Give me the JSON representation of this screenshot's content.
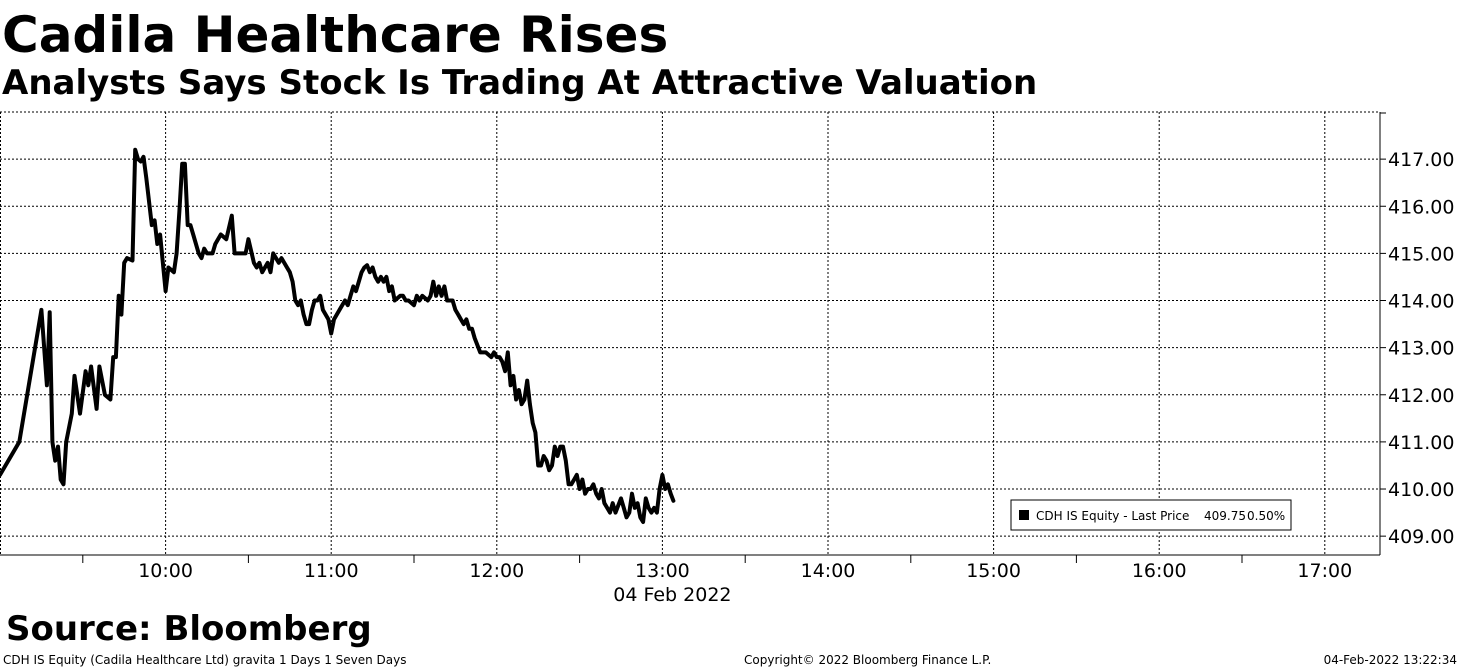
{
  "header": {
    "title": "Cadila Healthcare Rises",
    "subtitle": "Analysts Says Stock Is Trading At Attractive Valuation"
  },
  "source": "Source: Bloomberg",
  "footer": {
    "left": "CDH IS Equity (Cadila Healthcare Ltd) gravita 1 Days 1 Seven Days",
    "center": "Copyright© 2022 Bloomberg Finance L.P.",
    "right": "04-Feb-2022 13:22:34"
  },
  "chart_data": {
    "type": "line",
    "title": "Cadila Healthcare Rises",
    "subtitle": "Analysts Says Stock Is Trading At Attractive Valuation",
    "xlabel": "04 Feb 2022",
    "ylabel": "",
    "x_ticks": [
      "10:00",
      "11:00",
      "12:00",
      "13:00",
      "14:00",
      "15:00",
      "16:00",
      "17:00"
    ],
    "xlim": [
      "09:00",
      "17:20"
    ],
    "y_ticks": [
      "409.00",
      "410.00",
      "411.00",
      "412.00",
      "413.00",
      "414.00",
      "415.00",
      "416.00",
      "417.00"
    ],
    "ylim": [
      408.6,
      418.0
    ],
    "grid": true,
    "legend_position": "bottom-right",
    "legend": {
      "label": "CDH IS Equity - Last Price",
      "last_value": "409.75",
      "change": "0.50%"
    },
    "series": [
      {
        "name": "CDH IS Equity - Last Price",
        "color": "#000000",
        "points": [
          [
            "09:00",
            410.3
          ],
          [
            "09:07",
            411.0
          ],
          [
            "09:15",
            413.8
          ],
          [
            "09:17",
            412.2
          ],
          [
            "09:18",
            413.75
          ],
          [
            "09:19",
            411.0
          ],
          [
            "09:20",
            410.6
          ],
          [
            "09:21",
            410.9
          ],
          [
            "09:22",
            410.2
          ],
          [
            "09:23",
            410.1
          ],
          [
            "09:24",
            411.0
          ],
          [
            "09:26",
            411.6
          ],
          [
            "09:27",
            412.4
          ],
          [
            "09:29",
            411.6
          ],
          [
            "09:31",
            412.5
          ],
          [
            "09:32",
            412.2
          ],
          [
            "09:33",
            412.6
          ],
          [
            "09:35",
            411.7
          ],
          [
            "09:36",
            412.6
          ],
          [
            "09:38",
            412.0
          ],
          [
            "09:40",
            411.9
          ],
          [
            "09:41",
            412.8
          ],
          [
            "09:42",
            412.8
          ],
          [
            "09:43",
            414.1
          ],
          [
            "09:44",
            413.7
          ],
          [
            "09:45",
            414.8
          ],
          [
            "09:46",
            414.9
          ],
          [
            "09:48",
            414.85
          ],
          [
            "09:49",
            417.2
          ],
          [
            "09:50",
            417.0
          ],
          [
            "09:51",
            416.95
          ],
          [
            "09:52",
            417.05
          ],
          [
            "09:53",
            416.6
          ],
          [
            "09:55",
            415.6
          ],
          [
            "09:56",
            415.7
          ],
          [
            "09:57",
            415.2
          ],
          [
            "09:58",
            415.4
          ],
          [
            "10:00",
            414.2
          ],
          [
            "10:01",
            414.7
          ],
          [
            "10:03",
            414.6
          ],
          [
            "10:04",
            415.0
          ],
          [
            "10:05",
            415.9
          ],
          [
            "10:06",
            416.9
          ],
          [
            "10:07",
            416.9
          ],
          [
            "10:08",
            415.6
          ],
          [
            "10:09",
            415.6
          ],
          [
            "10:10",
            415.4
          ],
          [
            "10:12",
            415.0
          ],
          [
            "10:13",
            414.9
          ],
          [
            "10:14",
            415.1
          ],
          [
            "10:15",
            415.0
          ],
          [
            "10:17",
            415.0
          ],
          [
            "10:18",
            415.2
          ],
          [
            "10:20",
            415.4
          ],
          [
            "10:22",
            415.3
          ],
          [
            "10:24",
            415.8
          ],
          [
            "10:25",
            415.0
          ],
          [
            "10:26",
            415.0
          ],
          [
            "10:27",
            415.0
          ],
          [
            "10:29",
            415.0
          ],
          [
            "10:30",
            415.3
          ],
          [
            "10:32",
            414.8
          ],
          [
            "10:33",
            414.7
          ],
          [
            "10:34",
            414.8
          ],
          [
            "10:35",
            414.6
          ],
          [
            "10:37",
            414.8
          ],
          [
            "10:38",
            414.6
          ],
          [
            "10:39",
            415.0
          ],
          [
            "10:40",
            414.9
          ],
          [
            "10:41",
            414.8
          ],
          [
            "10:42",
            414.9
          ],
          [
            "10:44",
            414.7
          ],
          [
            "10:45",
            414.6
          ],
          [
            "10:46",
            414.4
          ],
          [
            "10:47",
            414.0
          ],
          [
            "10:48",
            413.9
          ],
          [
            "10:49",
            414.0
          ],
          [
            "10:50",
            413.7
          ],
          [
            "10:51",
            413.5
          ],
          [
            "10:52",
            413.5
          ],
          [
            "10:53",
            413.8
          ],
          [
            "10:54",
            414.0
          ],
          [
            "10:55",
            414.0
          ],
          [
            "10:56",
            414.1
          ],
          [
            "10:57",
            413.8
          ],
          [
            "10:59",
            413.6
          ],
          [
            "11:00",
            413.3
          ],
          [
            "11:01",
            413.6
          ],
          [
            "11:03",
            413.8
          ],
          [
            "11:04",
            413.9
          ],
          [
            "11:05",
            414.0
          ],
          [
            "11:06",
            413.9
          ],
          [
            "11:07",
            414.1
          ],
          [
            "11:08",
            414.3
          ],
          [
            "11:09",
            414.2
          ],
          [
            "11:10",
            414.4
          ],
          [
            "11:11",
            414.6
          ],
          [
            "11:12",
            414.7
          ],
          [
            "11:13",
            414.75
          ],
          [
            "11:14",
            414.6
          ],
          [
            "11:15",
            414.7
          ],
          [
            "11:16",
            414.5
          ],
          [
            "11:17",
            414.4
          ],
          [
            "11:18",
            414.5
          ],
          [
            "11:19",
            414.4
          ],
          [
            "11:20",
            414.5
          ],
          [
            "11:21",
            414.2
          ],
          [
            "11:22",
            414.3
          ],
          [
            "11:23",
            414.0
          ],
          [
            "11:25",
            414.1
          ],
          [
            "11:26",
            414.1
          ],
          [
            "11:27",
            414.0
          ],
          [
            "11:28",
            414.0
          ],
          [
            "11:30",
            413.9
          ],
          [
            "11:31",
            414.1
          ],
          [
            "11:32",
            414.0
          ],
          [
            "11:33",
            414.1
          ],
          [
            "11:35",
            414.0
          ],
          [
            "11:36",
            414.1
          ],
          [
            "11:37",
            414.4
          ],
          [
            "11:38",
            414.1
          ],
          [
            "11:39",
            414.3
          ],
          [
            "11:40",
            414.1
          ],
          [
            "11:41",
            414.3
          ],
          [
            "11:42",
            414.0
          ],
          [
            "11:43",
            414.0
          ],
          [
            "11:44",
            414.0
          ],
          [
            "11:45",
            413.8
          ],
          [
            "11:46",
            413.7
          ],
          [
            "11:47",
            413.6
          ],
          [
            "11:48",
            413.5
          ],
          [
            "11:49",
            413.6
          ],
          [
            "11:50",
            413.4
          ],
          [
            "11:51",
            413.4
          ],
          [
            "11:52",
            413.2
          ],
          [
            "11:54",
            412.9
          ],
          [
            "11:55",
            412.9
          ],
          [
            "11:56",
            412.9
          ],
          [
            "11:58",
            412.8
          ],
          [
            "11:59",
            412.9
          ],
          [
            "12:00",
            412.8
          ],
          [
            "12:01",
            412.8
          ],
          [
            "12:02",
            412.7
          ],
          [
            "12:03",
            412.5
          ],
          [
            "12:04",
            412.9
          ],
          [
            "12:05",
            412.2
          ],
          [
            "12:06",
            412.4
          ],
          [
            "12:07",
            411.9
          ],
          [
            "12:08",
            412.1
          ],
          [
            "12:09",
            411.8
          ],
          [
            "12:10",
            411.9
          ],
          [
            "12:11",
            412.3
          ],
          [
            "12:12",
            411.8
          ],
          [
            "12:13",
            411.4
          ],
          [
            "12:14",
            411.2
          ],
          [
            "12:15",
            410.5
          ],
          [
            "12:16",
            410.5
          ],
          [
            "12:17",
            410.7
          ],
          [
            "12:18",
            410.6
          ],
          [
            "12:19",
            410.4
          ],
          [
            "12:20",
            410.5
          ],
          [
            "12:21",
            410.9
          ],
          [
            "12:22",
            410.7
          ],
          [
            "12:23",
            410.9
          ],
          [
            "12:24",
            410.9
          ],
          [
            "12:25",
            410.6
          ],
          [
            "12:26",
            410.1
          ],
          [
            "12:27",
            410.1
          ],
          [
            "12:28",
            410.2
          ],
          [
            "12:29",
            410.3
          ],
          [
            "12:30",
            410.0
          ],
          [
            "12:31",
            410.2
          ],
          [
            "12:32",
            409.9
          ],
          [
            "12:33",
            410.0
          ],
          [
            "12:34",
            410.0
          ],
          [
            "12:35",
            410.1
          ],
          [
            "12:36",
            409.9
          ],
          [
            "12:37",
            409.8
          ],
          [
            "12:38",
            410.0
          ],
          [
            "12:39",
            409.7
          ],
          [
            "12:40",
            409.6
          ],
          [
            "12:41",
            409.5
          ],
          [
            "12:42",
            409.7
          ],
          [
            "12:43",
            409.5
          ],
          [
            "12:45",
            409.8
          ],
          [
            "12:46",
            409.6
          ],
          [
            "12:47",
            409.4
          ],
          [
            "12:48",
            409.5
          ],
          [
            "12:49",
            409.9
          ],
          [
            "12:50",
            409.6
          ],
          [
            "12:51",
            409.7
          ],
          [
            "12:52",
            409.4
          ],
          [
            "12:53",
            409.3
          ],
          [
            "12:54",
            409.8
          ],
          [
            "12:55",
            409.6
          ],
          [
            "12:56",
            409.5
          ],
          [
            "12:57",
            409.6
          ],
          [
            "12:58",
            409.5
          ],
          [
            "12:59",
            410.0
          ],
          [
            "13:00",
            410.3
          ],
          [
            "13:01",
            410.0
          ],
          [
            "13:02",
            410.1
          ],
          [
            "13:03",
            409.9
          ],
          [
            "13:04",
            409.75
          ]
        ]
      }
    ]
  }
}
